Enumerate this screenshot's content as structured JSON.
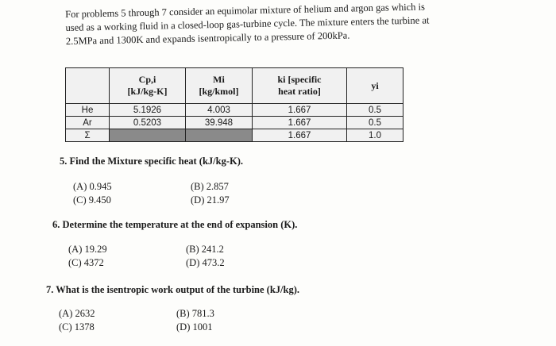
{
  "intro": {
    "lines": [
      "For problems 5 through 7 consider an equimolar mixture of helium and argon gas which is",
      "used as a working fluid in a closed-loop gas-turbine cycle. The mixture enters the turbine at",
      "2.5MPa and 1300K and expands isentropically to a pressure of 200kPa."
    ]
  },
  "table": {
    "header": [
      null,
      [
        "Cp,i",
        "[kJ/kg-K]"
      ],
      [
        "Mi",
        "[kg/kmol]"
      ],
      [
        "ki [specific",
        "heat ratio]"
      ],
      [
        "yi"
      ]
    ],
    "rows": [
      [
        "He",
        "5.1926",
        "4.003",
        "1.667",
        "0.5"
      ],
      [
        "Ar",
        "0.5203",
        "39.948",
        "1.667",
        "0.5"
      ],
      [
        "Σ",
        null,
        null,
        "1.667",
        "1.0"
      ]
    ]
  },
  "questions": [
    {
      "number": "5.",
      "text": "Find the Mixture specific heat (kJ/kg-K).",
      "options": [
        [
          "(A)",
          "0.945"
        ],
        [
          "(B)",
          "2.857"
        ],
        [
          "(C)",
          "9.450"
        ],
        [
          "(D)",
          "21.97"
        ]
      ]
    },
    {
      "number": "6.",
      "text": "Determine the temperature at the end of expansion (K).",
      "options": [
        [
          "(A)",
          "19.29"
        ],
        [
          "(B)",
          "241.2"
        ],
        [
          "(C)",
          "4372"
        ],
        [
          "(D)",
          "473.2"
        ]
      ]
    },
    {
      "number": "7.",
      "text": "What is the isentropic work output of the turbine (kJ/kg).",
      "options": [
        [
          "(A)",
          "2632"
        ],
        [
          "(B)",
          "781.3"
        ],
        [
          "(C)",
          "1378"
        ],
        [
          "(D)",
          "1001"
        ]
      ]
    }
  ]
}
